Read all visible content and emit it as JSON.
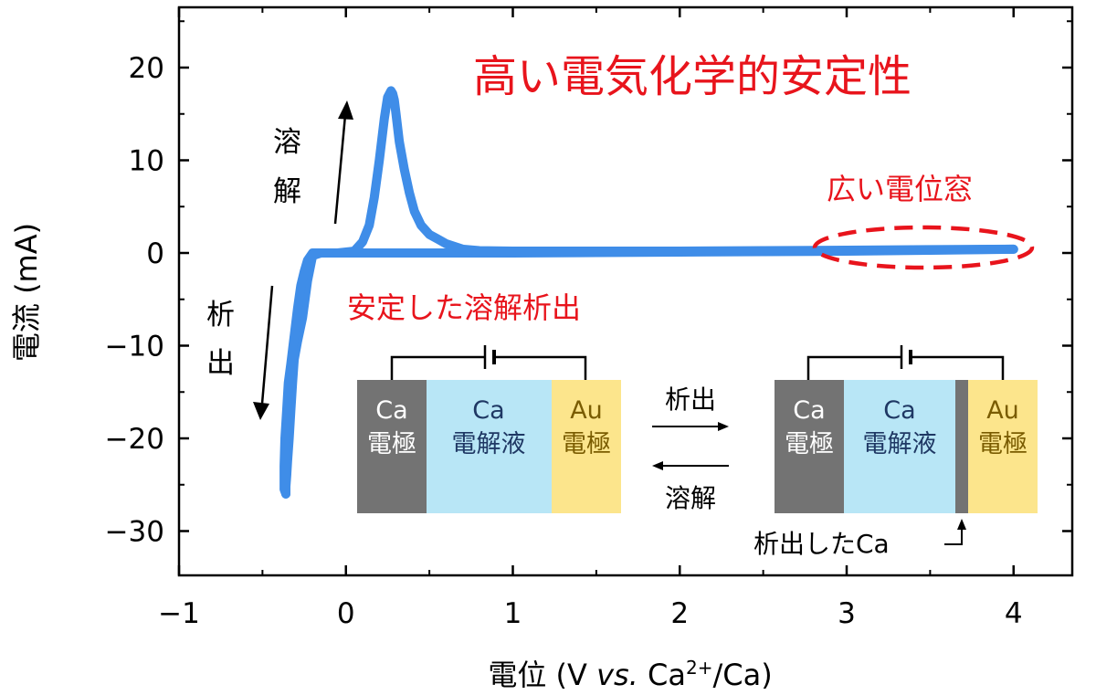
{
  "chart_data": {
    "type": "line",
    "title": "高い電気化学的安定性",
    "xlabel_parts": {
      "pre": "電位 (V ",
      "vs": "vs.",
      "mid": " Ca",
      "sup": "2+",
      "post": "/Ca)"
    },
    "ylabel": "電流 (mA)",
    "xlim": [
      -1,
      4.4
    ],
    "ylim": [
      -35,
      26
    ],
    "xticks": [
      {
        "v": -1,
        "label": "−1"
      },
      {
        "v": 0,
        "label": "0"
      },
      {
        "v": 1,
        "label": "1"
      },
      {
        "v": 2,
        "label": "2"
      },
      {
        "v": 3,
        "label": "3"
      },
      {
        "v": 4,
        "label": "4"
      }
    ],
    "yticks": [
      {
        "v": 20,
        "label": "20"
      },
      {
        "v": 10,
        "label": "10"
      },
      {
        "v": 0,
        "label": "0"
      },
      {
        "v": -10,
        "label": "−10"
      },
      {
        "v": -20,
        "label": "−20"
      },
      {
        "v": -30,
        "label": "−30"
      }
    ],
    "grid": false,
    "line_color": "#3f8de8",
    "series": [
      {
        "x": [
          4.0,
          3.5,
          3.0,
          2.5,
          2.0,
          1.5,
          1.0,
          0.5,
          0.2,
          0.0,
          -0.15,
          -0.2,
          -0.23,
          -0.26,
          -0.29,
          -0.31,
          -0.32,
          -0.33,
          -0.34,
          -0.35,
          -0.355,
          -0.36,
          -0.36
        ],
        "y": [
          0.4,
          0.3,
          0.2,
          0.15,
          0.1,
          0.05,
          0.0,
          0.0,
          0.0,
          0.0,
          0.0,
          -0.3,
          -3.0,
          -7.0,
          -9.5,
          -11.5,
          -14.0,
          -17.0,
          -20.0,
          -22.5,
          -24.0,
          -25.2,
          -26.0
        ]
      },
      {
        "x": [
          -0.36,
          -0.37,
          -0.37,
          -0.365,
          -0.355,
          -0.345,
          -0.33,
          -0.31,
          -0.29,
          -0.27,
          -0.25,
          -0.23,
          -0.2,
          -0.15,
          -0.05
        ],
        "y": [
          -26.0,
          -25.5,
          -23.0,
          -20.0,
          -17.0,
          -14.0,
          -12.0,
          -9.0,
          -6.0,
          -3.5,
          -2.0,
          -0.8,
          0.0,
          0.0,
          0.0
        ]
      },
      {
        "x": [
          -0.05,
          0.05,
          0.1,
          0.14,
          0.17,
          0.2,
          0.23,
          0.25,
          0.27,
          0.28,
          0.29,
          0.3,
          0.32,
          0.35,
          0.38,
          0.41,
          0.45,
          0.5,
          0.55,
          0.6,
          0.65,
          0.7,
          0.8,
          1.0,
          1.5,
          2.0,
          2.5,
          3.0,
          3.5,
          4.0
        ],
        "y": [
          0.0,
          0.2,
          1.2,
          3.0,
          6.0,
          10.0,
          14.5,
          16.8,
          17.5,
          17.2,
          16.5,
          15.0,
          12.0,
          9.0,
          6.5,
          4.5,
          3.0,
          2.0,
          1.5,
          1.0,
          0.7,
          0.4,
          0.25,
          0.2,
          0.2,
          0.2,
          0.25,
          0.3,
          0.35,
          0.4
        ]
      }
    ],
    "annotations": {
      "window": "広い電位窓",
      "stable": "安定した溶解析出",
      "dissolve_vertical": [
        "溶",
        "解"
      ],
      "deposit_vertical": [
        "析",
        "出"
      ],
      "arrow_deposit": "析出",
      "arrow_dissolve": "溶解",
      "deposited_ca": "析出したCa"
    },
    "cells": {
      "left": [
        {
          "line1": "Ca",
          "line2": "電極"
        },
        {
          "line1": "Ca",
          "line2": "電解液"
        },
        {
          "line1": "Au",
          "line2": "電極"
        }
      ],
      "right": [
        {
          "line1": "Ca",
          "line2": "電極"
        },
        {
          "line1": "Ca",
          "line2": "電解液"
        },
        {
          "line1": "Au",
          "line2": "電極"
        }
      ]
    },
    "colors": {
      "electrode_ca": "#737373",
      "electrolyte": "#b8e6f6",
      "electrode_au": "#fce58c",
      "ca_text": "#ffffff",
      "electrolyte_text": "#1f3864",
      "au_text": "#7a5c00",
      "red": "#e8141c"
    }
  }
}
